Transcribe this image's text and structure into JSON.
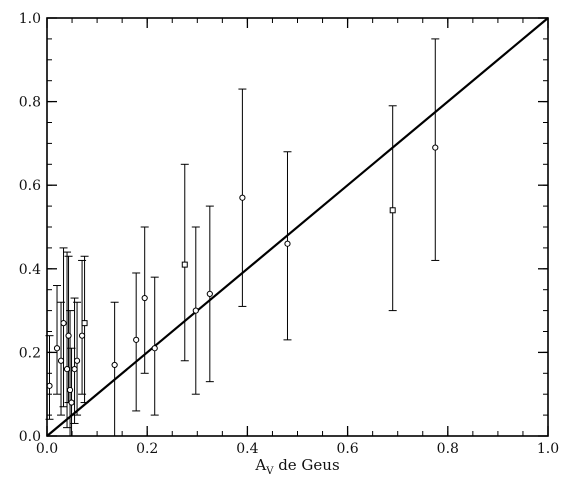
{
  "chart_data": {
    "type": "scatter",
    "title": "",
    "xlabel": "A",
    "xlabel_subscript": "V",
    "xlabel_rest": " de Geus",
    "ylabel": "",
    "xlim": [
      0,
      1
    ],
    "ylim": [
      0,
      1
    ],
    "x_ticks": [
      0.0,
      0.2,
      0.4,
      0.6,
      0.8,
      1.0
    ],
    "x_tick_labels": [
      "0.0",
      "0.2",
      "0.4",
      "0.6",
      "0.8",
      "1.0"
    ],
    "y_ticks": [
      0.0,
      0.2,
      0.4,
      0.6,
      0.8,
      1.0
    ],
    "y_tick_labels": [
      "0.0",
      "0.2",
      "0.4",
      "0.6",
      "0.8",
      "1.0"
    ],
    "minor_tick_step": 0.05,
    "grid": false,
    "reference_line": {
      "from": [
        0,
        0
      ],
      "to": [
        1,
        1
      ]
    },
    "points": [
      {
        "x": 0.005,
        "y": 0.12,
        "ylo": 0.04,
        "yhi": 0.24,
        "marker": "circle"
      },
      {
        "x": 0.02,
        "y": 0.21,
        "ylo": 0.1,
        "yhi": 0.36,
        "marker": "circle"
      },
      {
        "x": 0.028,
        "y": 0.18,
        "ylo": 0.05,
        "yhi": 0.32,
        "marker": "circle"
      },
      {
        "x": 0.033,
        "y": 0.27,
        "ylo": 0.07,
        "yhi": 0.45,
        "marker": "circle"
      },
      {
        "x": 0.04,
        "y": 0.16,
        "ylo": 0.02,
        "yhi": 0.44,
        "marker": "circle"
      },
      {
        "x": 0.043,
        "y": 0.24,
        "ylo": 0.08,
        "yhi": 0.43,
        "marker": "circle"
      },
      {
        "x": 0.046,
        "y": 0.11,
        "ylo": 0.0,
        "yhi": 0.3,
        "marker": "circle"
      },
      {
        "x": 0.049,
        "y": 0.08,
        "ylo": 0.0,
        "yhi": 0.21,
        "marker": "circle"
      },
      {
        "x": 0.055,
        "y": 0.16,
        "ylo": 0.03,
        "yhi": 0.33,
        "marker": "circle"
      },
      {
        "x": 0.06,
        "y": 0.18,
        "ylo": 0.05,
        "yhi": 0.32,
        "marker": "circle"
      },
      {
        "x": 0.07,
        "y": 0.24,
        "ylo": 0.1,
        "yhi": 0.42,
        "marker": "circle"
      },
      {
        "x": 0.075,
        "y": 0.27,
        "ylo": 0.08,
        "yhi": 0.43,
        "marker": "square"
      },
      {
        "x": 0.135,
        "y": 0.17,
        "ylo": 0.0,
        "yhi": 0.32,
        "marker": "circle"
      },
      {
        "x": 0.178,
        "y": 0.23,
        "ylo": 0.06,
        "yhi": 0.39,
        "marker": "circle"
      },
      {
        "x": 0.195,
        "y": 0.33,
        "ylo": 0.15,
        "yhi": 0.5,
        "marker": "circle"
      },
      {
        "x": 0.215,
        "y": 0.21,
        "ylo": 0.05,
        "yhi": 0.38,
        "marker": "circle"
      },
      {
        "x": 0.275,
        "y": 0.41,
        "ylo": 0.18,
        "yhi": 0.65,
        "marker": "square"
      },
      {
        "x": 0.297,
        "y": 0.3,
        "ylo": 0.1,
        "yhi": 0.5,
        "marker": "circle"
      },
      {
        "x": 0.325,
        "y": 0.34,
        "ylo": 0.13,
        "yhi": 0.55,
        "marker": "circle"
      },
      {
        "x": 0.39,
        "y": 0.57,
        "ylo": 0.31,
        "yhi": 0.83,
        "marker": "circle"
      },
      {
        "x": 0.48,
        "y": 0.46,
        "ylo": 0.23,
        "yhi": 0.68,
        "marker": "circle"
      },
      {
        "x": 0.69,
        "y": 0.54,
        "ylo": 0.3,
        "yhi": 0.79,
        "marker": "square"
      },
      {
        "x": 0.775,
        "y": 0.69,
        "ylo": 0.42,
        "yhi": 0.95,
        "marker": "circle"
      }
    ]
  }
}
